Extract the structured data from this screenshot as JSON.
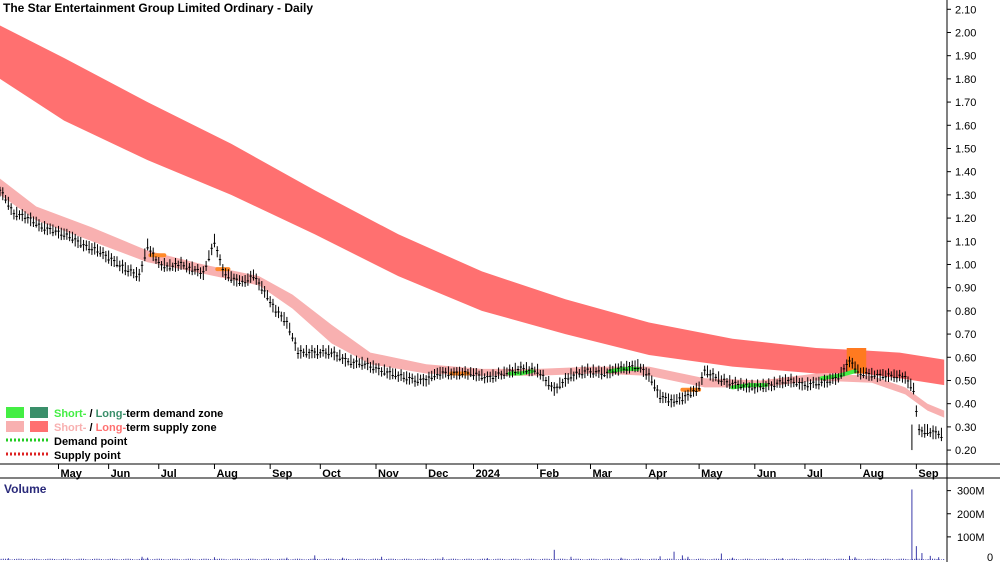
{
  "chart_data": {
    "type": "candlestick",
    "title": "The Star Entertainment Group Limited Ordinary - Daily",
    "price_axis": {
      "ylim": [
        0.14,
        2.14
      ],
      "ticks": [
        "0.20",
        "0.30",
        "0.40",
        "0.50",
        "0.60",
        "0.70",
        "0.80",
        "0.90",
        "1.00",
        "1.10",
        "1.20",
        "1.30",
        "1.40",
        "1.50",
        "1.60",
        "1.70",
        "1.80",
        "1.90",
        "2.00",
        "2.10"
      ]
    },
    "x_axis": {
      "months": [
        "May",
        "Jun",
        "Jul",
        "Aug",
        "Sep",
        "Oct",
        "Nov",
        "Dec",
        "2024",
        "Feb",
        "Mar",
        "Apr",
        "May",
        "Jun",
        "Jul",
        "Aug",
        "Sep"
      ],
      "month_index": [
        1.4,
        2.3,
        3.2,
        4.2,
        5.2,
        6.1,
        7.1,
        8.0,
        8.85,
        10.0,
        10.95,
        11.95,
        12.9,
        13.9,
        14.8,
        15.8,
        16.8
      ],
      "range": [
        0.35,
        17.35
      ]
    },
    "series": [
      {
        "name": "Long-term supply zone",
        "color": "#ff7070",
        "x": [
          0.35,
          1.5,
          3.0,
          4.5,
          6.0,
          7.5,
          9.0,
          10.5,
          12.0,
          13.5,
          15.0,
          15.8,
          16.5,
          17.3
        ],
        "upper": [
          2.03,
          1.89,
          1.7,
          1.52,
          1.32,
          1.13,
          0.97,
          0.85,
          0.75,
          0.68,
          0.64,
          0.63,
          0.62,
          0.59
        ],
        "lower": [
          1.8,
          1.62,
          1.45,
          1.3,
          1.13,
          0.95,
          0.8,
          0.7,
          0.61,
          0.56,
          0.53,
          0.53,
          0.51,
          0.48
        ]
      },
      {
        "name": "Short-term supply zone",
        "color": "#f8b0b0",
        "x": [
          0.35,
          1.0,
          2.0,
          3.0,
          4.0,
          5.0,
          5.6,
          6.3,
          7.0,
          8.0,
          9.0,
          10.0,
          11.0,
          12.0,
          13.0,
          14.0,
          15.0,
          16.0,
          16.6,
          17.0,
          17.3
        ],
        "upper": [
          1.37,
          1.25,
          1.16,
          1.06,
          1.0,
          0.95,
          0.87,
          0.74,
          0.62,
          0.57,
          0.55,
          0.55,
          0.56,
          0.56,
          0.51,
          0.5,
          0.53,
          0.52,
          0.47,
          0.4,
          0.37
        ],
        "lower": [
          1.3,
          1.19,
          1.1,
          1.01,
          0.96,
          0.91,
          0.81,
          0.66,
          0.57,
          0.53,
          0.52,
          0.52,
          0.53,
          0.52,
          0.47,
          0.47,
          0.5,
          0.49,
          0.44,
          0.37,
          0.34
        ]
      },
      {
        "name": "Short-term demand zone",
        "color": "#44ee44",
        "segments": [
          {
            "x": [
              9.5,
              9.7,
              9.9
            ],
            "y": [
              0.53,
              0.53,
              0.54
            ]
          },
          {
            "x": [
              11.3,
              11.55,
              11.8
            ],
            "y": [
              0.54,
              0.55,
              0.55
            ]
          },
          {
            "x": [
              13.5,
              13.8,
              14.1
            ],
            "y": [
              0.47,
              0.48,
              0.48
            ]
          },
          {
            "x": [
              15.1,
              15.4,
              15.7
            ],
            "y": [
              0.51,
              0.52,
              0.54
            ]
          }
        ]
      },
      {
        "name": "Short-term supply zone markers",
        "color": "#ff8a2a",
        "segments": [
          {
            "x": [
              3.05,
              3.3
            ],
            "y": [
              1.04,
              1.04
            ]
          },
          {
            "x": [
              4.25,
              4.45
            ],
            "y": [
              0.98,
              0.98
            ]
          },
          {
            "x": [
              8.45,
              8.75
            ],
            "y": [
              0.53,
              0.53
            ]
          },
          {
            "x": [
              12.6,
              12.9
            ],
            "y": [
              0.46,
              0.46
            ]
          }
        ]
      },
      {
        "name": "Long-term supply zone marker",
        "color": "#ff7a20",
        "box": {
          "x": [
            15.55,
            15.9
          ],
          "y": [
            0.53,
            0.64
          ]
        }
      },
      {
        "name": "Price",
        "color": "#000000",
        "x": [
          0.35,
          0.6,
          0.85,
          1.1,
          1.35,
          1.6,
          1.85,
          2.1,
          2.35,
          2.6,
          2.85,
          3.0,
          3.2,
          3.4,
          3.6,
          3.8,
          4.0,
          4.2,
          4.35,
          4.5,
          4.7,
          4.9,
          5.1,
          5.3,
          5.5,
          5.7,
          6.0,
          6.3,
          6.6,
          6.9,
          7.2,
          7.5,
          7.8,
          8.0,
          8.2,
          8.5,
          8.8,
          9.1,
          9.4,
          9.7,
          10.0,
          10.3,
          10.6,
          10.9,
          11.2,
          11.5,
          11.8,
          12.0,
          12.2,
          12.4,
          12.6,
          12.8,
          12.9,
          13.0,
          13.3,
          13.6,
          13.9,
          14.2,
          14.5,
          14.8,
          15.1,
          15.4,
          15.6,
          15.8,
          16.1,
          16.4,
          16.6,
          16.75,
          16.85,
          17.0,
          17.15,
          17.3
        ],
        "y": [
          1.32,
          1.22,
          1.2,
          1.16,
          1.14,
          1.12,
          1.08,
          1.06,
          1.02,
          0.98,
          0.95,
          1.08,
          1.0,
          0.99,
          1.0,
          0.98,
          0.96,
          1.1,
          0.97,
          0.94,
          0.92,
          0.95,
          0.88,
          0.8,
          0.75,
          0.62,
          0.62,
          0.62,
          0.58,
          0.57,
          0.54,
          0.52,
          0.5,
          0.5,
          0.53,
          0.53,
          0.53,
          0.51,
          0.53,
          0.55,
          0.54,
          0.46,
          0.52,
          0.54,
          0.53,
          0.55,
          0.56,
          0.52,
          0.43,
          0.41,
          0.42,
          0.45,
          0.47,
          0.54,
          0.5,
          0.48,
          0.47,
          0.48,
          0.5,
          0.48,
          0.49,
          0.51,
          0.58,
          0.53,
          0.52,
          0.52,
          0.51,
          0.46,
          0.28,
          0.28,
          0.27,
          0.26
        ]
      }
    ],
    "volume": {
      "title": "Volume",
      "ticks": [
        "100M",
        "200M",
        "300M"
      ],
      "ylim": [
        0,
        320
      ],
      "spikes": [
        {
          "x": 0.5,
          "v": 8
        },
        {
          "x": 2.9,
          "v": 14
        },
        {
          "x": 3.0,
          "v": 10
        },
        {
          "x": 4.2,
          "v": 12
        },
        {
          "x": 5.5,
          "v": 10
        },
        {
          "x": 6.0,
          "v": 20
        },
        {
          "x": 6.5,
          "v": 10
        },
        {
          "x": 7.2,
          "v": 14
        },
        {
          "x": 8.3,
          "v": 12
        },
        {
          "x": 9.1,
          "v": 8
        },
        {
          "x": 10.3,
          "v": 44
        },
        {
          "x": 10.6,
          "v": 14
        },
        {
          "x": 11.5,
          "v": 10
        },
        {
          "x": 12.2,
          "v": 16
        },
        {
          "x": 12.45,
          "v": 36
        },
        {
          "x": 12.6,
          "v": 20
        },
        {
          "x": 12.7,
          "v": 14
        },
        {
          "x": 13.3,
          "v": 28
        },
        {
          "x": 13.5,
          "v": 10
        },
        {
          "x": 14.4,
          "v": 8
        },
        {
          "x": 15.6,
          "v": 18
        },
        {
          "x": 15.7,
          "v": 12
        },
        {
          "x": 16.72,
          "v": 305
        },
        {
          "x": 16.8,
          "v": 60
        },
        {
          "x": 16.9,
          "v": 30
        },
        {
          "x": 17.05,
          "v": 18
        },
        {
          "x": 17.2,
          "v": 12
        }
      ],
      "baseline_v": 4
    },
    "legend": {
      "position": "bottom-left",
      "items": [
        {
          "label_short": "Short-",
          "sep": " / ",
          "label_long": "Long-",
          "rest": "term demand zone",
          "short_color": "#44ee44",
          "long_color": "#3a8f6a",
          "kind": "zone"
        },
        {
          "label_short": "Short-",
          "sep": " / ",
          "label_long": "Long-",
          "rest": "term supply zone",
          "short_color": "#f8b0b0",
          "long_color": "#ff7070",
          "kind": "zone"
        },
        {
          "label": "Demand point",
          "color": "#22cc22",
          "kind": "dots"
        },
        {
          "label": "Supply point",
          "color": "#dd2222",
          "kind": "dots"
        }
      ]
    }
  }
}
